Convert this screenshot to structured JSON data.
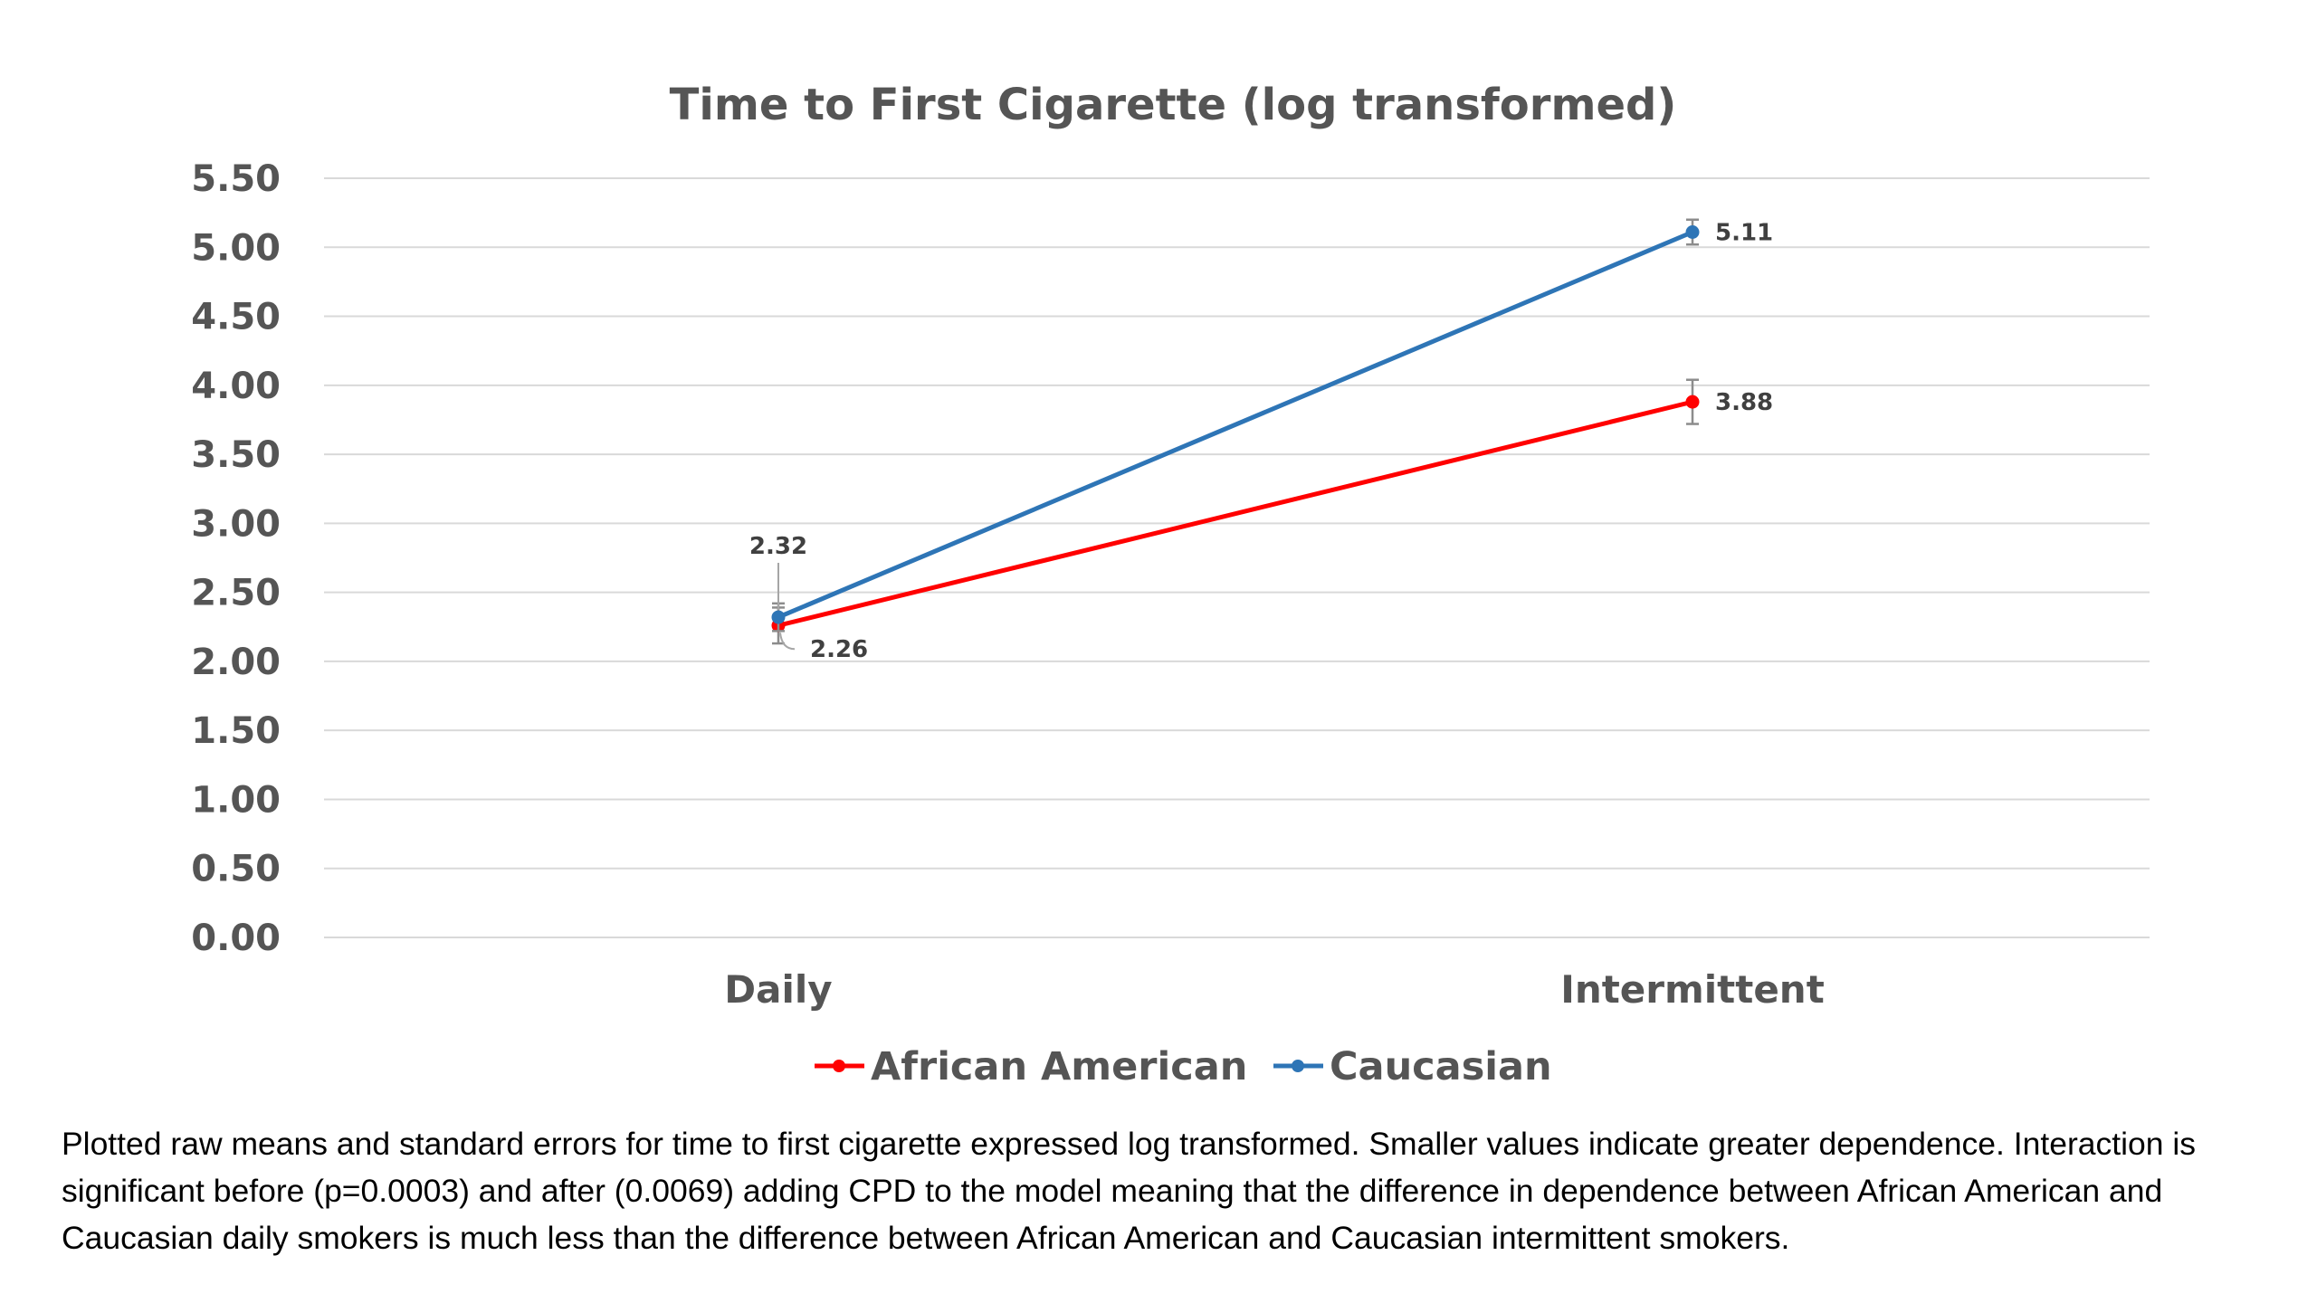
{
  "chart_data": {
    "type": "line",
    "title": "Time to First Cigarette (log transformed)",
    "xlabel": "",
    "ylabel": "",
    "categories": [
      "Daily",
      "Intermittent"
    ],
    "ylim": [
      0,
      5.5
    ],
    "yticks": [
      0,
      0.5,
      1,
      1.5,
      2,
      2.5,
      3,
      3.5,
      4,
      4.5,
      5,
      5.5
    ],
    "ytick_labels": [
      "0.00",
      "0.50",
      "1.00",
      "1.50",
      "2.00",
      "2.50",
      "3.00",
      "3.50",
      "4.00",
      "4.50",
      "5.00",
      "5.50"
    ],
    "grid": true,
    "legend_position": "bottom",
    "series": [
      {
        "name": "African American",
        "color": "#ff0000",
        "values": [
          2.26,
          3.88
        ],
        "errors": [
          0.13,
          0.16
        ],
        "labels": [
          "2.26",
          "3.88"
        ]
      },
      {
        "name": "Caucasian",
        "color": "#2e75b6",
        "values": [
          2.32,
          5.11
        ],
        "errors": [
          0.1,
          0.09
        ],
        "labels": [
          "2.32",
          "5.11"
        ]
      }
    ]
  },
  "caption": "Plotted raw means and standard errors for time to first cigarette expressed log transformed.  Smaller values indicate greater dependence.  Interaction is significant before (p=0.0003) and after (0.0069) adding CPD to the model meaning that the difference in dependence between African American and Caucasian daily smokers is much less than the difference between African American and Caucasian intermittent smokers."
}
